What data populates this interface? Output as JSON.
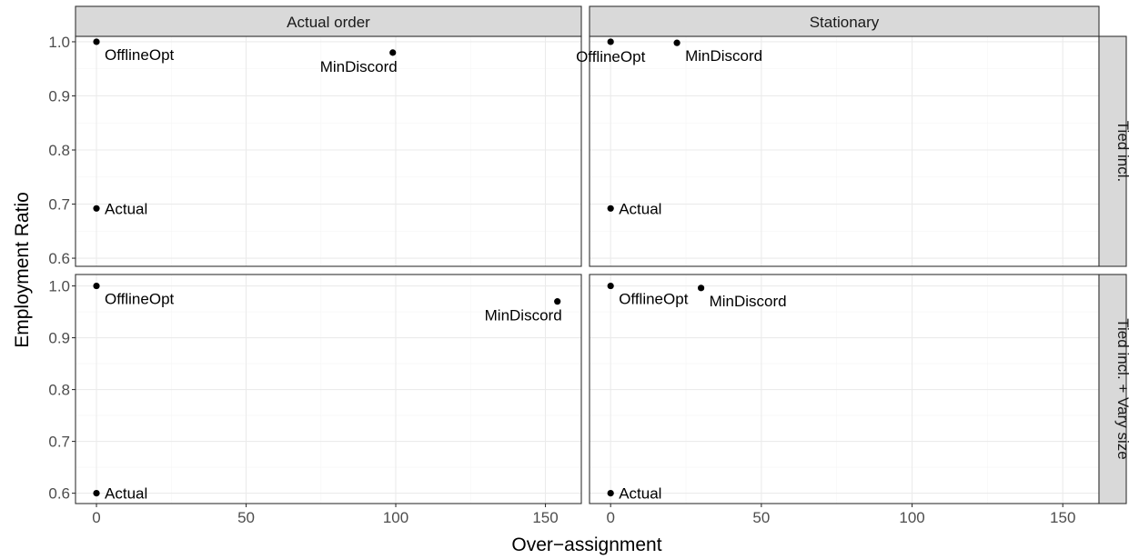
{
  "chart_data": {
    "type": "scatter",
    "xlabel": "Over−assignment",
    "ylabel": "Employment Ratio",
    "xlim": [
      -7,
      162
    ],
    "x_ticks": [
      0,
      50,
      100,
      150
    ],
    "y_ticks": [
      0.6,
      0.7,
      0.8,
      0.9,
      1.0
    ],
    "column_facets": [
      "Actual order",
      "Stationary"
    ],
    "row_facets": [
      "Tied incl.",
      "Tied incl. + Vary size"
    ],
    "grid": true,
    "legend": "none",
    "panels": [
      {
        "column": "Actual order",
        "row": "Tied incl.",
        "ylim": [
          0.585,
          1.01
        ],
        "points": [
          {
            "label": "OfflineOpt",
            "x": 0,
            "y": 1.0,
            "label_pos": "below-right"
          },
          {
            "label": "MinDiscord",
            "x": 99,
            "y": 0.98,
            "label_pos": "below-left"
          },
          {
            "label": "Actual",
            "x": 0,
            "y": 0.692,
            "label_pos": "right"
          }
        ]
      },
      {
        "column": "Stationary",
        "row": "Tied incl.",
        "ylim": [
          0.585,
          1.01
        ],
        "points": [
          {
            "label": "OfflineOpt",
            "x": 0,
            "y": 1.0,
            "label_pos": "below"
          },
          {
            "label": "MinDiscord",
            "x": 22,
            "y": 0.998,
            "label_pos": "below-right"
          },
          {
            "label": "Actual",
            "x": 0,
            "y": 0.692,
            "label_pos": "right"
          }
        ]
      },
      {
        "column": "Actual order",
        "row": "Tied incl. + Vary size",
        "ylim": [
          0.58,
          1.022
        ],
        "points": [
          {
            "label": "OfflineOpt",
            "x": 0,
            "y": 1.0,
            "label_pos": "below-right"
          },
          {
            "label": "MinDiscord",
            "x": 154,
            "y": 0.97,
            "label_pos": "below-left"
          },
          {
            "label": "Actual",
            "x": 0,
            "y": 0.6,
            "label_pos": "right"
          }
        ]
      },
      {
        "column": "Stationary",
        "row": "Tied incl. + Vary size",
        "ylim": [
          0.58,
          1.022
        ],
        "points": [
          {
            "label": "OfflineOpt",
            "x": 0,
            "y": 1.0,
            "label_pos": "below-right"
          },
          {
            "label": "MinDiscord",
            "x": 30,
            "y": 0.996,
            "label_pos": "below-right"
          },
          {
            "label": "Actual",
            "x": 0,
            "y": 0.6,
            "label_pos": "right"
          }
        ]
      }
    ]
  }
}
